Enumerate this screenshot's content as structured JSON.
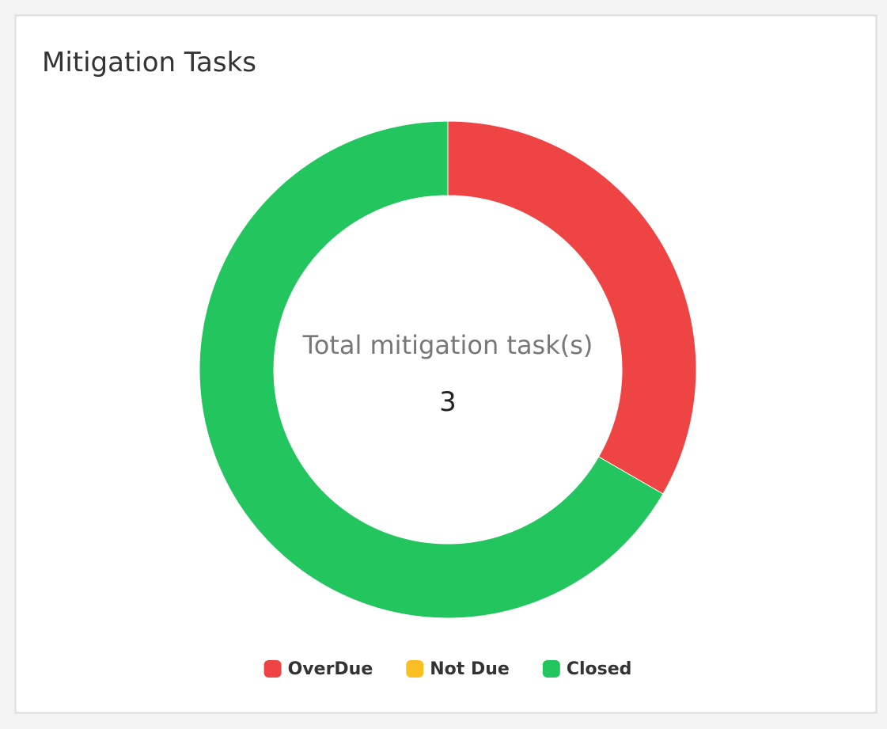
{
  "chart_data": {
    "type": "donut",
    "title": "Mitigation Tasks",
    "center_label": "Total mitigation task(s)",
    "center_value": 3,
    "categories": [
      "OverDue",
      "Not Due",
      "Closed"
    ],
    "values": [
      1,
      0,
      2
    ],
    "colors": [
      "#ef4444",
      "#fbbf24",
      "#22c55e"
    ],
    "legend": "bottom"
  }
}
